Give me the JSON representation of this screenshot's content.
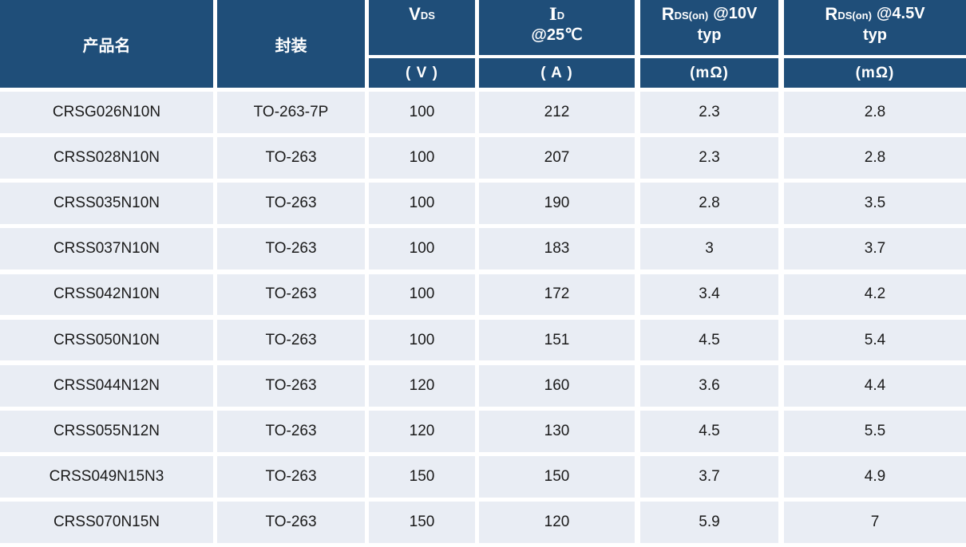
{
  "header": {
    "product": "产品名",
    "package": "封装",
    "vds": {
      "main": "V",
      "sub": "DS",
      "unit": "( V )"
    },
    "id": {
      "main": "I",
      "sub": "D",
      "line2": "@25℃",
      "unit": "( A )"
    },
    "rds10": {
      "main": "R",
      "sub": "DS(on)",
      "after": "@10V",
      "line2": "typ",
      "unit": "(mΩ)"
    },
    "rds45": {
      "main": "R",
      "sub": "DS(on)",
      "after": "@4.5V",
      "line2": "typ",
      "unit": "(mΩ)"
    }
  },
  "rows": [
    [
      "CRSG026N10N",
      "TO-263-7P",
      "100",
      "212",
      "2.3",
      "2.8"
    ],
    [
      "CRSS028N10N",
      "TO-263",
      "100",
      "207",
      "2.3",
      "2.8"
    ],
    [
      "CRSS035N10N",
      "TO-263",
      "100",
      "190",
      "2.8",
      "3.5"
    ],
    [
      "CRSS037N10N",
      "TO-263",
      "100",
      "183",
      "3",
      "3.7"
    ],
    [
      "CRSS042N10N",
      "TO-263",
      "100",
      "172",
      "3.4",
      "4.2"
    ],
    [
      "CRSS050N10N",
      "TO-263",
      "100",
      "151",
      "4.5",
      "5.4"
    ],
    [
      "CRSS044N12N",
      "TO-263",
      "120",
      "160",
      "3.6",
      "4.4"
    ],
    [
      "CRSS055N12N",
      "TO-263",
      "120",
      "130",
      "4.5",
      "5.5"
    ],
    [
      "CRSS049N15N3",
      "TO-263",
      "150",
      "150",
      "3.7",
      "4.9"
    ],
    [
      "CRSS070N15N",
      "TO-263",
      "150",
      "120",
      "5.9",
      "7"
    ]
  ],
  "colors": {
    "header_bg": "#1F4E79",
    "header_text": "#FFFFFF",
    "row_bg": "#E9EDF4",
    "row_text": "#1A1A1A",
    "gutter": "#FFFFFF"
  },
  "chart_data": {
    "type": "table",
    "title": "",
    "columns": [
      "产品名",
      "封装",
      "VDS (V)",
      "ID @25℃ (A)",
      "RDS(on) @10V typ (mΩ)",
      "RDS(on) @4.5V typ (mΩ)"
    ],
    "rows": [
      [
        "CRSG026N10N",
        "TO-263-7P",
        100,
        212,
        2.3,
        2.8
      ],
      [
        "CRSS028N10N",
        "TO-263",
        100,
        207,
        2.3,
        2.8
      ],
      [
        "CRSS035N10N",
        "TO-263",
        100,
        190,
        2.8,
        3.5
      ],
      [
        "CRSS037N10N",
        "TO-263",
        100,
        183,
        3,
        3.7
      ],
      [
        "CRSS042N10N",
        "TO-263",
        100,
        172,
        3.4,
        4.2
      ],
      [
        "CRSS050N10N",
        "TO-263",
        100,
        151,
        4.5,
        5.4
      ],
      [
        "CRSS044N12N",
        "TO-263",
        120,
        160,
        3.6,
        4.4
      ],
      [
        "CRSS055N12N",
        "TO-263",
        120,
        130,
        4.5,
        5.5
      ],
      [
        "CRSS049N15N3",
        "TO-263",
        150,
        150,
        3.7,
        4.9
      ],
      [
        "CRSS070N15N",
        "TO-263",
        150,
        120,
        5.9,
        7
      ]
    ]
  }
}
